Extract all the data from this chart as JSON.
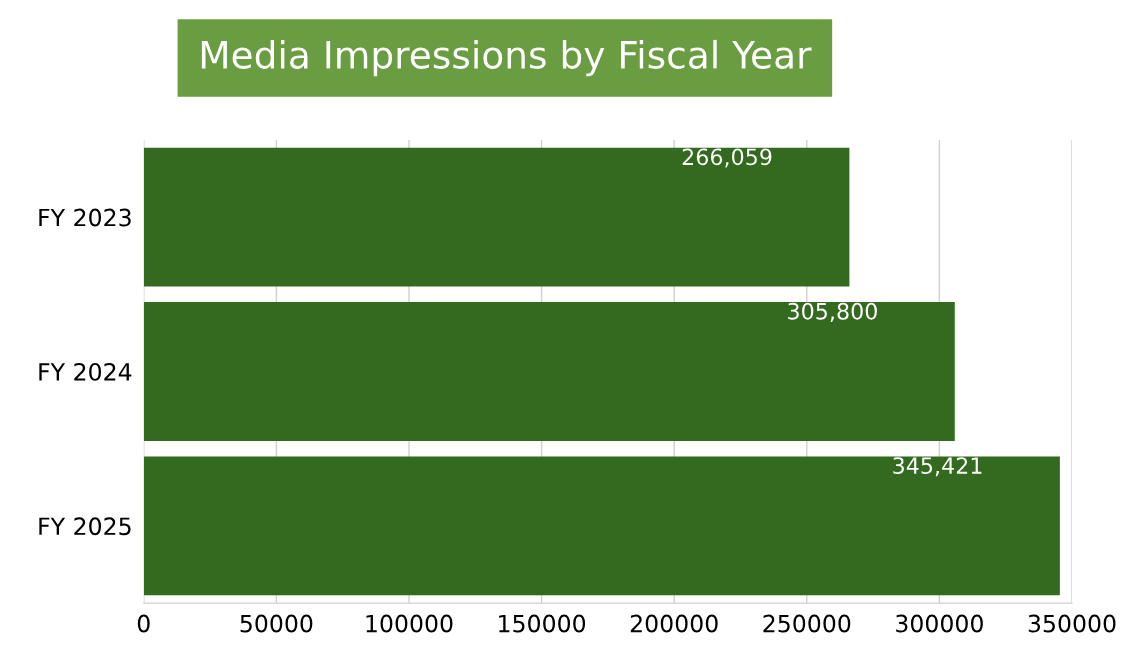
{
  "chart_data": {
    "type": "bar",
    "orientation": "horizontal",
    "title": "Media Impressions by Fiscal Year",
    "categories": [
      "FY 2023",
      "FY 2024",
      "FY 2025"
    ],
    "values": [
      266059,
      305800,
      345421
    ],
    "color": "#336a1f",
    "value_labels": [
      "266,059",
      "305,800",
      "345,421"
    ],
    "xlim": [
      0,
      350000
    ],
    "xticks": [
      0,
      50000,
      100000,
      150000,
      200000,
      250000,
      300000,
      350000
    ],
    "grid": "x",
    "legend": false
  }
}
